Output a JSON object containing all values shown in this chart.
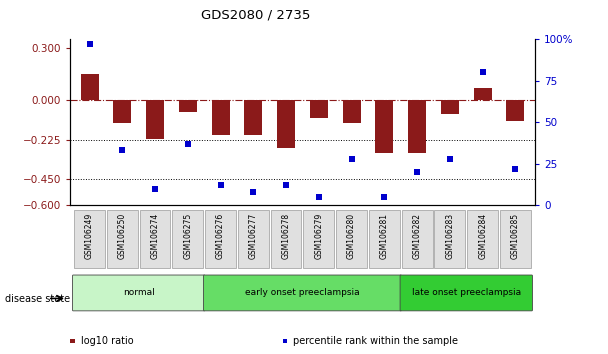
{
  "title": "GDS2080 / 2735",
  "samples": [
    "GSM106249",
    "GSM106250",
    "GSM106274",
    "GSM106275",
    "GSM106276",
    "GSM106277",
    "GSM106278",
    "GSM106279",
    "GSM106280",
    "GSM106281",
    "GSM106282",
    "GSM106283",
    "GSM106284",
    "GSM106285"
  ],
  "log10_ratio": [
    0.15,
    -0.13,
    -0.22,
    -0.07,
    -0.2,
    -0.2,
    -0.27,
    -0.1,
    -0.13,
    -0.3,
    -0.3,
    -0.08,
    0.07,
    -0.12
  ],
  "percentile_rank": [
    97,
    33,
    10,
    37,
    12,
    8,
    12,
    5,
    28,
    5,
    20,
    28,
    80,
    22
  ],
  "ylim_left": [
    -0.6,
    0.35
  ],
  "ylim_right": [
    0,
    100
  ],
  "yticks_left": [
    0.3,
    0.0,
    -0.225,
    -0.45,
    -0.6
  ],
  "yticks_right": [
    100,
    75,
    50,
    25,
    0
  ],
  "bar_color": "#8B1A1A",
  "dot_color": "#0000CD",
  "dotted_lines": [
    -0.225,
    -0.45
  ],
  "groups": [
    {
      "label": "normal",
      "start": 0,
      "end": 3,
      "color": "#c8f5c8"
    },
    {
      "label": "early onset preeclampsia",
      "start": 4,
      "end": 9,
      "color": "#66dd66"
    },
    {
      "label": "late onset preeclampsia",
      "start": 10,
      "end": 13,
      "color": "#33cc33"
    }
  ],
  "legend_items": [
    {
      "label": "log10 ratio",
      "color": "#8B1A1A"
    },
    {
      "label": "percentile rank within the sample",
      "color": "#0000CD"
    }
  ],
  "disease_state_label": "disease state",
  "background_color": "#ffffff"
}
